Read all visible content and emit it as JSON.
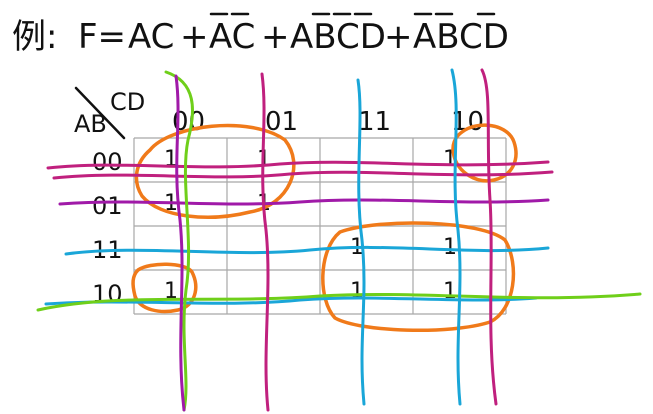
{
  "title": {
    "example_label": "例:",
    "lhs": "F=",
    "terms": [
      {
        "text": "AC",
        "bars": []
      },
      {
        "text": "+",
        "bars": []
      },
      {
        "text": "AC",
        "bars": [
          0,
          1
        ]
      },
      {
        "text": "+",
        "bars": []
      },
      {
        "text": "ABCD",
        "bars": [
          1,
          2,
          3
        ]
      },
      {
        "text": "+",
        "bars": []
      },
      {
        "text": "ABCD",
        "bars": [
          0,
          1,
          3
        ]
      }
    ]
  },
  "kmap": {
    "corner_row_var": "AB",
    "corner_col_var": "CD",
    "col_headers": [
      "00",
      "01",
      "11",
      "10"
    ],
    "row_headers": [
      "00",
      "01",
      "11",
      "10"
    ],
    "ones": [
      {
        "row": 0,
        "col": 0,
        "text": "1"
      },
      {
        "row": 0,
        "col": 1,
        "text": "1"
      },
      {
        "row": 0,
        "col": 3,
        "text": "1"
      },
      {
        "row": 1,
        "col": 0,
        "text": "1"
      },
      {
        "row": 1,
        "col": 1,
        "text": "1"
      },
      {
        "row": 2,
        "col": 2,
        "text": "1"
      },
      {
        "row": 2,
        "col": 3,
        "text": "1"
      },
      {
        "row": 3,
        "col": 0,
        "text": "1"
      },
      {
        "row": 3,
        "col": 2,
        "text": "1"
      },
      {
        "row": 3,
        "col": 3,
        "text": "1"
      }
    ]
  },
  "colors": {
    "grid": "#a8a8a8",
    "loops": "#f07a1a",
    "magenta": "#c0207e",
    "purple": "#a01aa8",
    "cyan": "#1aa6d8",
    "green": "#6fcf1a",
    "ink": "#111111"
  }
}
